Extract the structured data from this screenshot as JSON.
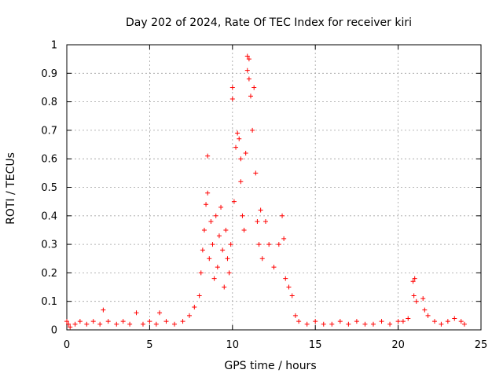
{
  "chart_data": {
    "type": "scatter",
    "title": "Day 202 of 2024, Rate Of TEC Index for receiver kiri",
    "xlabel": "GPS time / hours",
    "ylabel": "ROTI / TECUs",
    "xlim": [
      0,
      25
    ],
    "ylim": [
      0,
      1
    ],
    "x_ticks": [
      "0",
      "5",
      "10",
      "15",
      "20",
      "25"
    ],
    "y_ticks": [
      "0",
      "0.1",
      "0.2",
      "0.3",
      "0.4",
      "0.5",
      "0.6",
      "0.7",
      "0.8",
      "0.9",
      "1"
    ],
    "grid": true,
    "marker": "plus",
    "colors": {
      "points": "#ff0000",
      "grid": "#a0a0a0",
      "axes": "#000000"
    },
    "series": [
      {
        "points": [
          [
            0.0,
            0.03
          ],
          [
            0.1,
            0.02
          ],
          [
            0.2,
            0.01
          ],
          [
            0.5,
            0.02
          ],
          [
            0.8,
            0.03
          ],
          [
            1.2,
            0.02
          ],
          [
            1.6,
            0.03
          ],
          [
            2.0,
            0.02
          ],
          [
            2.2,
            0.07
          ],
          [
            2.5,
            0.03
          ],
          [
            3.0,
            0.02
          ],
          [
            3.4,
            0.03
          ],
          [
            3.8,
            0.02
          ],
          [
            4.2,
            0.06
          ],
          [
            4.6,
            0.02
          ],
          [
            5.0,
            0.03
          ],
          [
            5.4,
            0.02
          ],
          [
            5.6,
            0.06
          ],
          [
            6.0,
            0.03
          ],
          [
            6.5,
            0.02
          ],
          [
            7.0,
            0.03
          ],
          [
            7.4,
            0.05
          ],
          [
            7.7,
            0.08
          ],
          [
            8.0,
            0.12
          ],
          [
            8.1,
            0.2
          ],
          [
            8.2,
            0.28
          ],
          [
            8.3,
            0.35
          ],
          [
            8.4,
            0.44
          ],
          [
            8.5,
            0.48
          ],
          [
            8.5,
            0.61
          ],
          [
            8.6,
            0.25
          ],
          [
            8.7,
            0.38
          ],
          [
            8.8,
            0.3
          ],
          [
            8.9,
            0.18
          ],
          [
            9.0,
            0.4
          ],
          [
            9.1,
            0.22
          ],
          [
            9.2,
            0.33
          ],
          [
            9.3,
            0.43
          ],
          [
            9.4,
            0.28
          ],
          [
            9.5,
            0.15
          ],
          [
            9.6,
            0.35
          ],
          [
            9.7,
            0.25
          ],
          [
            9.8,
            0.2
          ],
          [
            9.9,
            0.3
          ],
          [
            10.0,
            0.85
          ],
          [
            10.0,
            0.81
          ],
          [
            10.1,
            0.45
          ],
          [
            10.2,
            0.64
          ],
          [
            10.3,
            0.69
          ],
          [
            10.4,
            0.67
          ],
          [
            10.5,
            0.6
          ],
          [
            10.5,
            0.52
          ],
          [
            10.6,
            0.4
          ],
          [
            10.7,
            0.35
          ],
          [
            10.8,
            0.62
          ],
          [
            10.9,
            0.96
          ],
          [
            10.9,
            0.91
          ],
          [
            11.0,
            0.95
          ],
          [
            11.0,
            0.88
          ],
          [
            11.1,
            0.82
          ],
          [
            11.2,
            0.7
          ],
          [
            11.3,
            0.85
          ],
          [
            11.4,
            0.55
          ],
          [
            11.5,
            0.38
          ],
          [
            11.6,
            0.3
          ],
          [
            11.7,
            0.42
          ],
          [
            11.8,
            0.25
          ],
          [
            12.0,
            0.38
          ],
          [
            12.2,
            0.3
          ],
          [
            12.5,
            0.22
          ],
          [
            12.8,
            0.3
          ],
          [
            13.0,
            0.4
          ],
          [
            13.1,
            0.32
          ],
          [
            13.2,
            0.18
          ],
          [
            13.4,
            0.15
          ],
          [
            13.6,
            0.12
          ],
          [
            13.8,
            0.05
          ],
          [
            14.0,
            0.03
          ],
          [
            14.5,
            0.02
          ],
          [
            15.0,
            0.03
          ],
          [
            15.5,
            0.02
          ],
          [
            16.0,
            0.02
          ],
          [
            16.5,
            0.03
          ],
          [
            17.0,
            0.02
          ],
          [
            17.5,
            0.03
          ],
          [
            18.0,
            0.02
          ],
          [
            18.5,
            0.02
          ],
          [
            19.0,
            0.03
          ],
          [
            19.5,
            0.02
          ],
          [
            20.0,
            0.03
          ],
          [
            20.3,
            0.03
          ],
          [
            20.6,
            0.04
          ],
          [
            20.9,
            0.17
          ],
          [
            21.0,
            0.18
          ],
          [
            20.95,
            0.12
          ],
          [
            21.1,
            0.1
          ],
          [
            21.5,
            0.11
          ],
          [
            21.6,
            0.07
          ],
          [
            21.8,
            0.05
          ],
          [
            22.2,
            0.03
          ],
          [
            22.6,
            0.02
          ],
          [
            23.0,
            0.03
          ],
          [
            23.4,
            0.04
          ],
          [
            23.8,
            0.03
          ],
          [
            24.0,
            0.02
          ]
        ]
      }
    ]
  }
}
